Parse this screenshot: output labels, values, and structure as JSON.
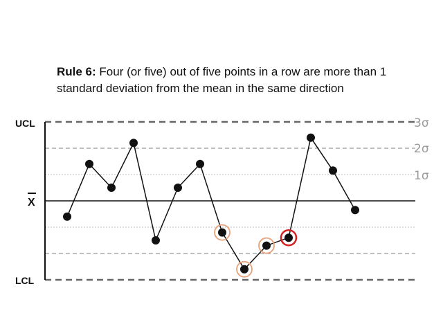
{
  "title": {
    "bold": "Rule 6:",
    "text": "Four (or five) out of five points in a row are more than 1 standard deviation from the mean in the same direction"
  },
  "colors": {
    "point": "#111111",
    "line": "#111111",
    "control_limit": "#666666",
    "sigma2": "#999999",
    "sigma1": "#bbbbbb",
    "highlight_ring": "#e8a07a",
    "violation_ring": "#d42020"
  },
  "chart_data": {
    "type": "line",
    "title": "",
    "xlabel": "",
    "ylabel": "",
    "ylim": [
      -3,
      3
    ],
    "left_labels": {
      "ucl": "UCL",
      "mean": "X",
      "lcl": "LCL"
    },
    "sigma_labels": [
      "3σ",
      "2σ",
      "1σ"
    ],
    "reference_lines": [
      {
        "value": 3,
        "style": "dashed-heavy"
      },
      {
        "value": 2,
        "style": "dashed"
      },
      {
        "value": 1,
        "style": "dotted"
      },
      {
        "value": 0,
        "style": "solid"
      },
      {
        "value": -1,
        "style": "dotted"
      },
      {
        "value": -2,
        "style": "dashed"
      },
      {
        "value": -3,
        "style": "dashed-heavy"
      }
    ],
    "x": [
      1,
      2,
      3,
      4,
      5,
      6,
      7,
      8,
      9,
      10,
      11,
      12,
      13,
      14
    ],
    "values": [
      -0.6,
      1.4,
      0.5,
      2.2,
      -1.5,
      0.5,
      1.4,
      -1.2,
      -2.6,
      -1.7,
      -1.4,
      2.4,
      1.15,
      -0.35
    ],
    "highlighted_points": [
      8,
      9,
      10
    ],
    "violation_point": 11
  }
}
